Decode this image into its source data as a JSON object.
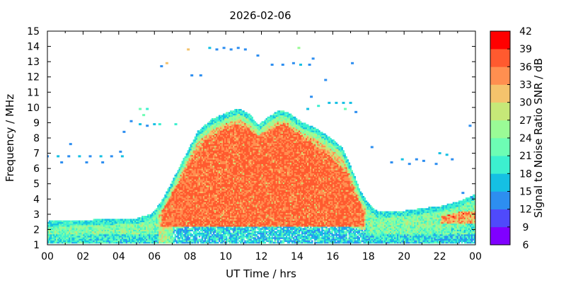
{
  "chart_data": {
    "type": "heatmap",
    "title": "2026-02-06",
    "xlabel": "UT Time / hrs",
    "ylabel": "Frequency / MHz",
    "xlim": [
      0,
      24
    ],
    "ylim": [
      1,
      15
    ],
    "x_ticks": [
      "00",
      "02",
      "04",
      "06",
      "08",
      "10",
      "12",
      "14",
      "16",
      "18",
      "20",
      "22",
      "00"
    ],
    "y_ticks": [
      "1",
      "2",
      "3",
      "4",
      "5",
      "6",
      "7",
      "8",
      "9",
      "10",
      "11",
      "12",
      "13",
      "14",
      "15"
    ],
    "colorbar": {
      "label": "Signal to Noise Ratio SNR / dB",
      "range": [
        6,
        42
      ],
      "step": 3,
      "ticks": [
        "6",
        "9",
        "12",
        "15",
        "18",
        "21",
        "24",
        "27",
        "30",
        "33",
        "36",
        "39",
        "42"
      ],
      "colors": [
        "#8000ff",
        "#4f4afb",
        "#2d8ef0",
        "#15c0e3",
        "#3cf0cf",
        "#6dfdb4",
        "#9afb96",
        "#c6e878",
        "#f4c36c",
        "#ff8f50",
        "#ff5a2f",
        "#ff0000"
      ]
    },
    "layers": [
      {
        "name": "main-band",
        "x_start": 0.0,
        "x_end": 24.0,
        "f_low": 1.1,
        "top_profile": [
          [
            0,
            2.5
          ],
          [
            5.0,
            2.7
          ],
          [
            5.8,
            3.0
          ],
          [
            6.3,
            3.7
          ],
          [
            6.9,
            5.0
          ],
          [
            7.6,
            6.6
          ],
          [
            8.4,
            8.4
          ],
          [
            9.2,
            9.2
          ],
          [
            10.0,
            9.6
          ],
          [
            10.7,
            9.9
          ],
          [
            11.3,
            9.5
          ],
          [
            11.8,
            8.8
          ],
          [
            12.3,
            9.3
          ],
          [
            13.0,
            9.8
          ],
          [
            13.5,
            9.6
          ],
          [
            14.2,
            9.0
          ],
          [
            15.0,
            8.6
          ],
          [
            15.8,
            8.0
          ],
          [
            16.5,
            7.3
          ],
          [
            17.0,
            6.0
          ],
          [
            17.5,
            4.5
          ],
          [
            18.0,
            3.6
          ],
          [
            18.5,
            3.1
          ],
          [
            20.0,
            3.2
          ],
          [
            22.0,
            3.5
          ],
          [
            23.0,
            3.8
          ],
          [
            24.0,
            4.3
          ]
        ]
      },
      {
        "name": "daytime-core",
        "x_start": 6.4,
        "x_end": 17.7,
        "f_low": 2.2,
        "top_profile": [
          [
            6.4,
            3.2
          ],
          [
            7.2,
            4.8
          ],
          [
            8.0,
            6.5
          ],
          [
            8.8,
            7.8
          ],
          [
            9.6,
            8.4
          ],
          [
            10.5,
            8.9
          ],
          [
            11.2,
            8.6
          ],
          [
            11.8,
            8.0
          ],
          [
            12.4,
            8.5
          ],
          [
            13.2,
            8.9
          ],
          [
            14.0,
            8.3
          ],
          [
            15.0,
            7.5
          ],
          [
            16.0,
            6.6
          ],
          [
            16.8,
            5.6
          ],
          [
            17.3,
            4.2
          ],
          [
            17.7,
            3.2
          ]
        ]
      },
      {
        "name": "low-layer-gap",
        "x_start": 7.0,
        "x_end": 17.8,
        "f_low": 1.5,
        "top_profile": [
          [
            7.0,
            2.0
          ],
          [
            9.0,
            2.3
          ],
          [
            11.0,
            2.6
          ],
          [
            13.0,
            2.5
          ],
          [
            15.0,
            2.3
          ],
          [
            17.0,
            2.1
          ],
          [
            17.8,
            1.9
          ]
        ]
      }
    ],
    "scatter_points": [
      {
        "time": 0.0,
        "freq": 6.8,
        "snr": 14
      },
      {
        "time": 0.6,
        "freq": 6.8,
        "snr": 15
      },
      {
        "time": 1.2,
        "freq": 6.8,
        "snr": 14
      },
      {
        "time": 1.8,
        "freq": 6.8,
        "snr": 15
      },
      {
        "time": 2.4,
        "freq": 6.8,
        "snr": 14
      },
      {
        "time": 3.0,
        "freq": 6.8,
        "snr": 15
      },
      {
        "time": 3.6,
        "freq": 6.8,
        "snr": 14
      },
      {
        "time": 4.2,
        "freq": 6.8,
        "snr": 15
      },
      {
        "time": 1.3,
        "freq": 7.6,
        "snr": 13
      },
      {
        "time": 0.8,
        "freq": 6.4,
        "snr": 13
      },
      {
        "time": 2.2,
        "freq": 6.4,
        "snr": 13
      },
      {
        "time": 3.1,
        "freq": 6.4,
        "snr": 13
      },
      {
        "time": 4.1,
        "freq": 7.1,
        "snr": 13
      },
      {
        "time": 4.3,
        "freq": 8.4,
        "snr": 13
      },
      {
        "time": 4.7,
        "freq": 9.1,
        "snr": 13
      },
      {
        "time": 5.2,
        "freq": 9.9,
        "snr": 21
      },
      {
        "time": 5.6,
        "freq": 9.9,
        "snr": 20
      },
      {
        "time": 5.4,
        "freq": 9.5,
        "snr": 22
      },
      {
        "time": 5.2,
        "freq": 8.9,
        "snr": 15
      },
      {
        "time": 5.6,
        "freq": 8.8,
        "snr": 14
      },
      {
        "time": 6.0,
        "freq": 8.9,
        "snr": 17
      },
      {
        "time": 6.3,
        "freq": 8.9,
        "snr": 19
      },
      {
        "time": 7.2,
        "freq": 8.9,
        "snr": 20
      },
      {
        "time": 6.4,
        "freq": 12.7,
        "snr": 14
      },
      {
        "time": 6.7,
        "freq": 12.9,
        "snr": 31
      },
      {
        "time": 7.9,
        "freq": 13.8,
        "snr": 32
      },
      {
        "time": 8.1,
        "freq": 12.1,
        "snr": 14
      },
      {
        "time": 8.6,
        "freq": 12.1,
        "snr": 14
      },
      {
        "time": 9.1,
        "freq": 13.9,
        "snr": 16
      },
      {
        "time": 9.5,
        "freq": 13.8,
        "snr": 14
      },
      {
        "time": 9.9,
        "freq": 13.9,
        "snr": 14
      },
      {
        "time": 10.3,
        "freq": 13.8,
        "snr": 14
      },
      {
        "time": 10.7,
        "freq": 13.9,
        "snr": 14
      },
      {
        "time": 11.1,
        "freq": 13.8,
        "snr": 14
      },
      {
        "time": 11.8,
        "freq": 13.4,
        "snr": 14
      },
      {
        "time": 12.6,
        "freq": 12.8,
        "snr": 14
      },
      {
        "time": 13.2,
        "freq": 12.8,
        "snr": 14
      },
      {
        "time": 13.8,
        "freq": 12.9,
        "snr": 14
      },
      {
        "time": 14.2,
        "freq": 12.8,
        "snr": 15
      },
      {
        "time": 14.7,
        "freq": 12.8,
        "snr": 14
      },
      {
        "time": 14.1,
        "freq": 13.9,
        "snr": 24
      },
      {
        "time": 14.9,
        "freq": 13.2,
        "snr": 13
      },
      {
        "time": 15.6,
        "freq": 11.8,
        "snr": 14
      },
      {
        "time": 14.8,
        "freq": 10.7,
        "snr": 13
      },
      {
        "time": 15.2,
        "freq": 10.1,
        "snr": 20
      },
      {
        "time": 15.8,
        "freq": 10.3,
        "snr": 15
      },
      {
        "time": 16.2,
        "freq": 10.3,
        "snr": 15
      },
      {
        "time": 16.6,
        "freq": 10.3,
        "snr": 15
      },
      {
        "time": 17.0,
        "freq": 10.3,
        "snr": 15
      },
      {
        "time": 16.7,
        "freq": 9.9,
        "snr": 21
      },
      {
        "time": 17.3,
        "freq": 9.7,
        "snr": 14
      },
      {
        "time": 17.1,
        "freq": 12.9,
        "snr": 14
      },
      {
        "time": 14.6,
        "freq": 9.9,
        "snr": 16
      },
      {
        "time": 18.2,
        "freq": 7.4,
        "snr": 14
      },
      {
        "time": 19.3,
        "freq": 6.4,
        "snr": 14
      },
      {
        "time": 19.9,
        "freq": 6.6,
        "snr": 15
      },
      {
        "time": 20.3,
        "freq": 6.3,
        "snr": 14
      },
      {
        "time": 20.7,
        "freq": 6.6,
        "snr": 14
      },
      {
        "time": 21.1,
        "freq": 6.5,
        "snr": 14
      },
      {
        "time": 22.0,
        "freq": 7.0,
        "snr": 17
      },
      {
        "time": 22.4,
        "freq": 6.9,
        "snr": 17
      },
      {
        "time": 22.7,
        "freq": 6.6,
        "snr": 14
      },
      {
        "time": 21.8,
        "freq": 6.3,
        "snr": 14
      },
      {
        "time": 23.7,
        "freq": 8.8,
        "snr": 14
      },
      {
        "time": 23.3,
        "freq": 4.4,
        "snr": 13
      },
      {
        "time": 23.8,
        "freq": 4.1,
        "snr": 13
      }
    ]
  }
}
